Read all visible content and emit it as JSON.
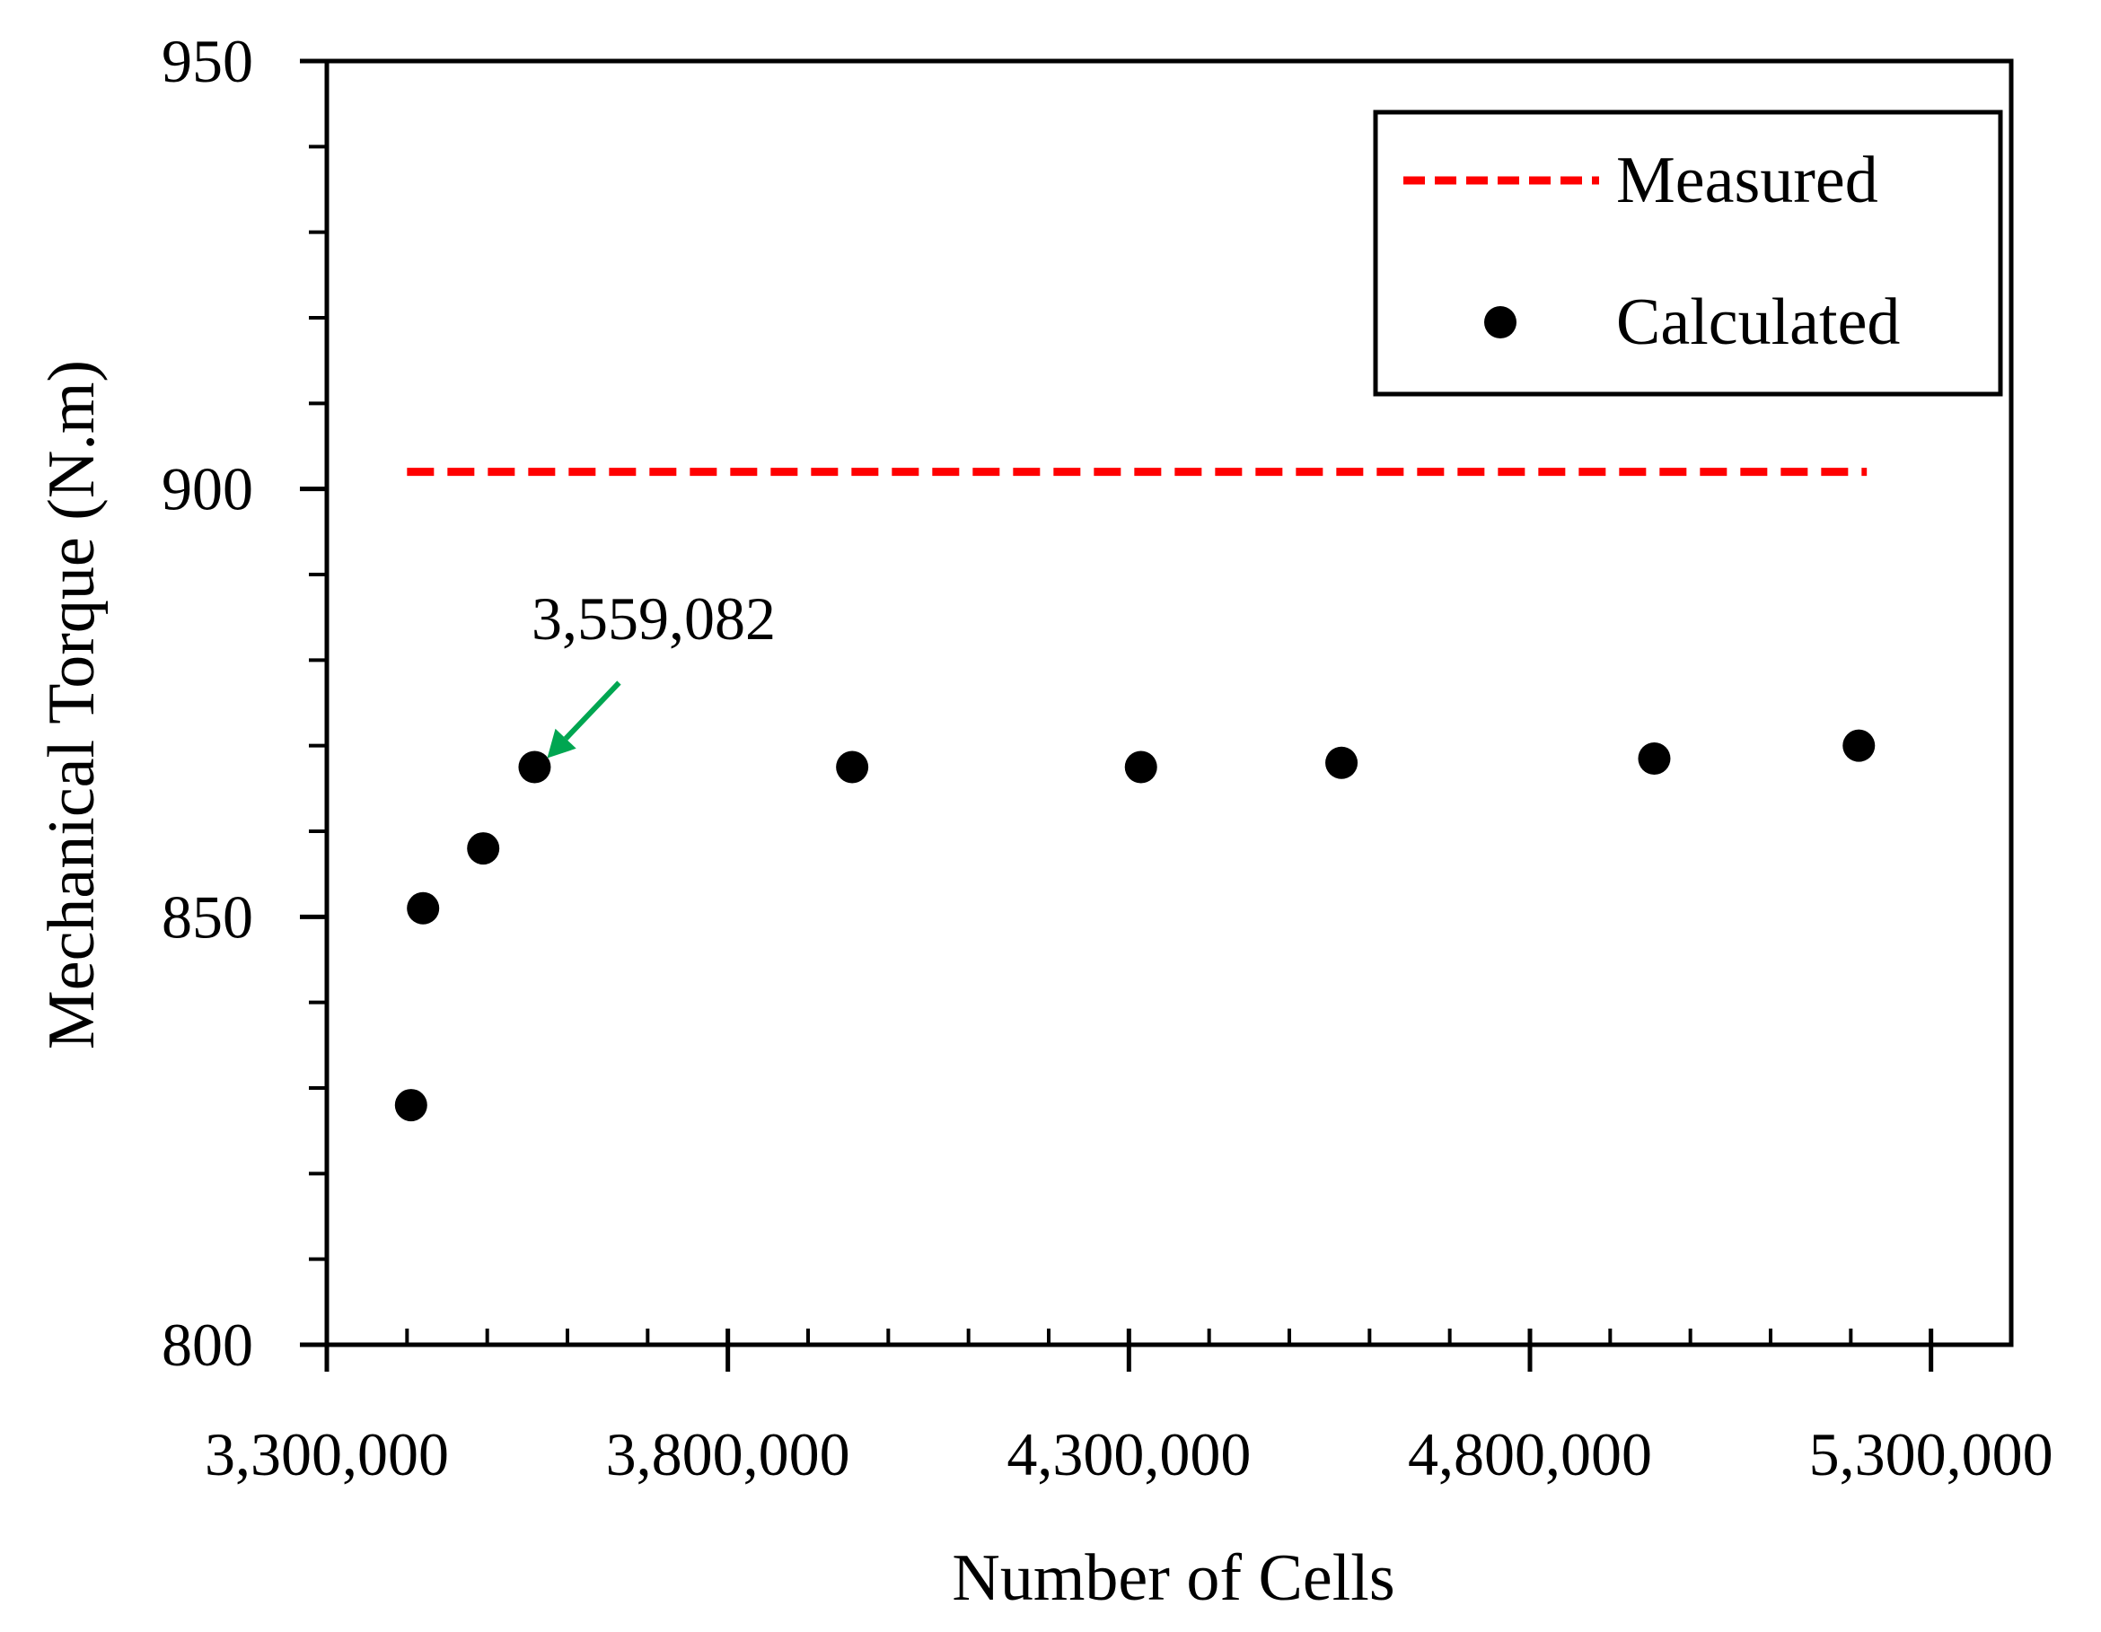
{
  "chart_data": {
    "type": "scatter",
    "xlabel": "Number of Cells",
    "ylabel": "Mechanical Torque (N.m)",
    "xlim": [
      3300000,
      5400000
    ],
    "ylim": [
      800,
      950
    ],
    "x_major_ticks": [
      3300000,
      3800000,
      4300000,
      4800000,
      5300000
    ],
    "x_tick_labels": [
      "3,300,000",
      "3,800,000",
      "4,300,000",
      "4,800,000",
      "5,300,000"
    ],
    "x_minor_step": 100000,
    "y_major_ticks": [
      800,
      850,
      900,
      950
    ],
    "y_tick_labels": [
      "800",
      "850",
      "900",
      "950"
    ],
    "y_minor_step": 10,
    "legend_position": "top-right",
    "series": [
      {
        "name": "Measured",
        "kind": "dashed-line",
        "color": "#ff0000",
        "x": [
          3400000,
          5220000
        ],
        "y": [
          902,
          902
        ]
      },
      {
        "name": "Calculated",
        "kind": "markers",
        "color": "#000000",
        "x": [
          3405000,
          3420000,
          3495000,
          3559082,
          3955000,
          4315000,
          4565000,
          4955000,
          5210000
        ],
        "y": [
          828,
          851,
          858,
          867.5,
          867.5,
          867.5,
          868,
          868.5,
          870
        ]
      }
    ],
    "annotation": {
      "text": "3,559,082",
      "arrow_color": "#00a651",
      "target_x": 3559082,
      "target_y": 867.5
    }
  }
}
